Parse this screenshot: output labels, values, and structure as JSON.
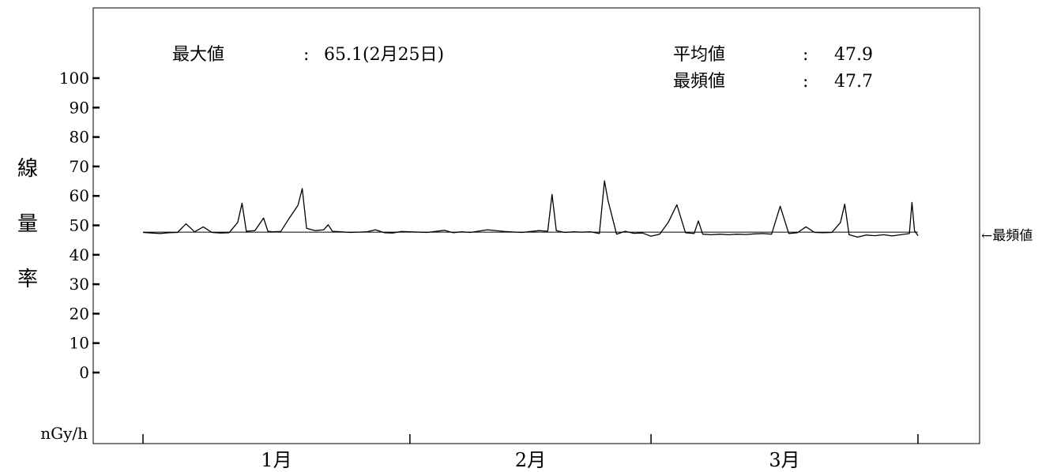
{
  "chart_data": {
    "type": "line",
    "ylabel_chars": [
      "線",
      "量",
      "率"
    ],
    "unit": "nGy/h",
    "ylim": [
      0,
      100
    ],
    "yticks": [
      0,
      10,
      20,
      30,
      40,
      50,
      60,
      70,
      80,
      90,
      100
    ],
    "x_months": [
      "1月",
      "2月",
      "3月"
    ],
    "x_days_per_month": [
      31,
      28,
      31
    ],
    "mode_label": "←最頻値",
    "stats": {
      "max_label": "最大値",
      "max_value": "65.1(2月25日)",
      "mean_label": "平均値",
      "mean_value": "47.9",
      "mode_label": "最頻値",
      "mode_value": "47.7",
      "separator": ":"
    },
    "mode_value": 47.7,
    "series": [
      {
        "x_day": [
          0,
          1,
          2,
          3,
          4,
          5,
          6,
          7,
          8,
          9,
          10,
          11,
          11.5,
          12,
          13,
          14,
          14.5,
          15,
          16,
          17,
          18,
          18.5,
          19,
          20,
          21,
          21.5,
          22,
          23,
          24,
          25,
          26,
          27,
          28,
          29,
          30,
          31,
          33,
          35,
          36,
          37,
          38,
          40,
          42,
          44,
          45,
          46,
          47,
          47.5,
          48,
          49,
          50,
          51,
          52,
          53,
          53.6,
          54,
          55,
          56,
          57,
          58,
          59,
          60,
          61,
          62,
          63,
          64,
          64.5,
          65,
          66,
          67,
          68,
          69,
          70,
          71,
          72,
          73,
          74,
          75,
          76,
          77,
          78,
          79,
          80,
          81,
          81.5,
          82,
          83,
          84,
          85,
          86,
          87,
          88,
          89,
          89.3,
          89.6,
          90
        ],
        "values": [
          47.6,
          47.4,
          47.2,
          47.5,
          47.6,
          50.5,
          47.8,
          49.5,
          47.6,
          47.4,
          47.5,
          51.0,
          57.5,
          48.0,
          48.2,
          52.5,
          48.0,
          47.8,
          47.9,
          52.5,
          56.8,
          62.5,
          49.0,
          48.2,
          48.5,
          50.2,
          48.0,
          47.8,
          47.6,
          47.7,
          47.8,
          48.5,
          47.5,
          47.4,
          47.9,
          47.8,
          47.6,
          48.3,
          47.5,
          47.8,
          47.6,
          48.5,
          47.9,
          47.6,
          47.9,
          48.2,
          48.0,
          60.5,
          48.2,
          47.6,
          47.8,
          47.7,
          47.8,
          47.2,
          65.1,
          58.5,
          47.0,
          48.0,
          47.3,
          47.4,
          46.3,
          47.0,
          51.0,
          57.0,
          47.5,
          47.2,
          51.5,
          47.0,
          46.8,
          47.0,
          46.8,
          47.0,
          46.9,
          47.1,
          47.2,
          47.0,
          56.5,
          47.2,
          47.5,
          49.5,
          47.6,
          47.5,
          47.6,
          51.0,
          57.2,
          46.8,
          46.0,
          46.7,
          46.5,
          46.8,
          46.4,
          46.8,
          47.2,
          57.8,
          48.2,
          46.5
        ]
      }
    ]
  }
}
